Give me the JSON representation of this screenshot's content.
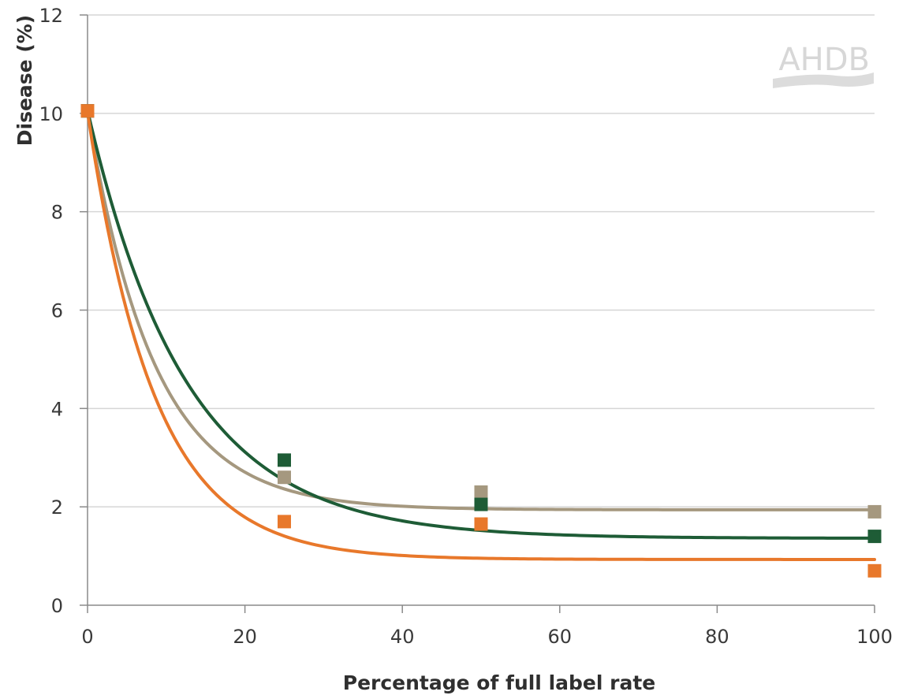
{
  "chart_data": {
    "type": "scatter",
    "title": "",
    "xlabel": "Percentage of full label rate",
    "ylabel": "Disease (%)",
    "xlim": [
      0,
      100
    ],
    "ylim": [
      0,
      12
    ],
    "x_ticks": [
      0,
      20,
      40,
      60,
      80,
      100
    ],
    "y_ticks": [
      0,
      2,
      4,
      6,
      8,
      10,
      12
    ],
    "grid": "horizontal",
    "legend": "none",
    "watermark": "AHDB",
    "series": [
      {
        "color": "#a5987f",
        "points": [
          [
            0,
            10.05
          ],
          [
            25,
            2.6
          ],
          [
            50,
            2.3
          ],
          [
            100,
            1.9
          ]
        ],
        "fit": {
          "asymptote": 1.94,
          "amplitude": 8.1,
          "decay": 0.118
        }
      },
      {
        "color": "#1e5c36",
        "points": [
          [
            0,
            10.05
          ],
          [
            25,
            2.95
          ],
          [
            50,
            2.05
          ],
          [
            100,
            1.4
          ]
        ],
        "fit": {
          "asymptote": 1.36,
          "amplitude": 8.7,
          "decay": 0.08
        }
      },
      {
        "color": "#e8782b",
        "points": [
          [
            0,
            10.05
          ],
          [
            25,
            1.7
          ],
          [
            50,
            1.65
          ],
          [
            100,
            0.7
          ]
        ],
        "fit": {
          "asymptote": 0.93,
          "amplitude": 9.1,
          "decay": 0.118
        }
      }
    ]
  }
}
